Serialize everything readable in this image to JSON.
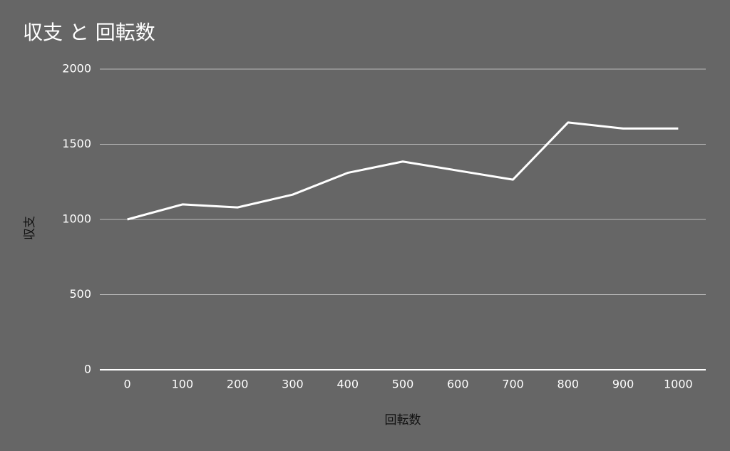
{
  "chart_data": {
    "type": "line",
    "title": "収支 と 回転数",
    "x_label": "回転数",
    "y_label": "収支",
    "categories": [
      "0",
      "100",
      "200",
      "300",
      "400",
      "500",
      "600",
      "700",
      "800",
      "900",
      "1000"
    ],
    "series": [
      {
        "name": "収支",
        "color": "#ffffff",
        "values": [
          1000,
          1100,
          1080,
          1165,
          1310,
          1385,
          1325,
          1265,
          1645,
          1605,
          1605
        ]
      }
    ],
    "ylim": [
      0,
      2000
    ],
    "yticks": [
      0,
      500,
      1000,
      1500,
      2000
    ],
    "grid": true
  }
}
